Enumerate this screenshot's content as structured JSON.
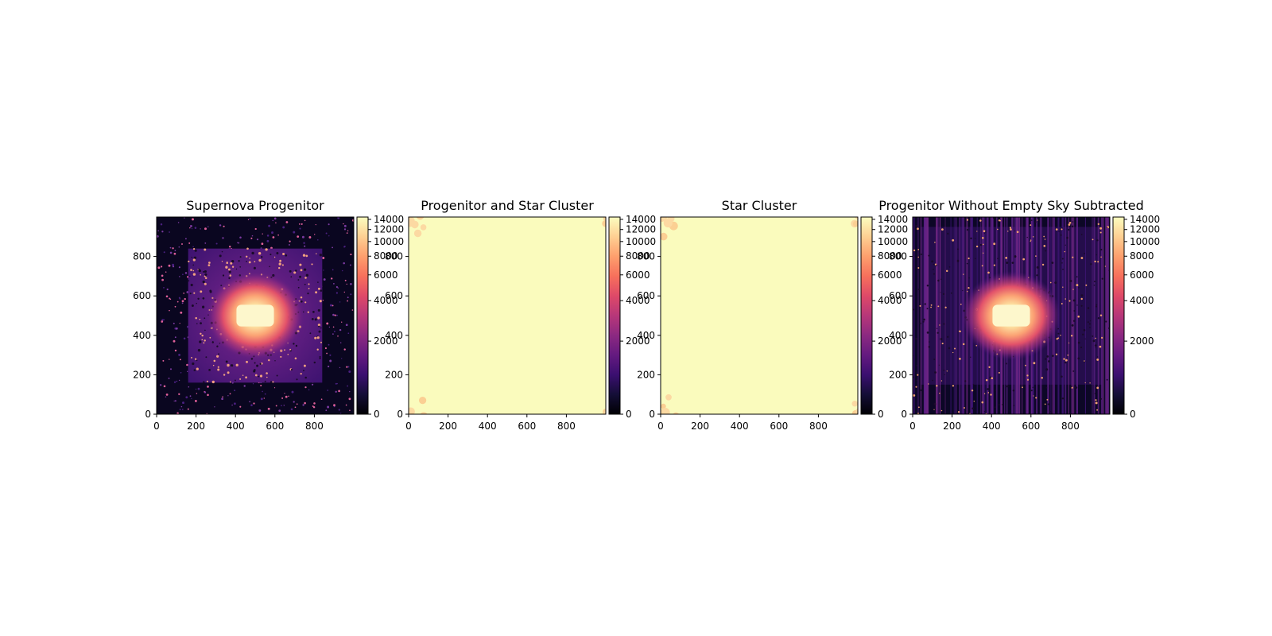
{
  "figure": {
    "background": "#ffffff"
  },
  "chart_data": [
    {
      "type": "heatmap",
      "title": "Supernova Progenitor",
      "xlabel": "",
      "ylabel": "",
      "xlim": [
        0,
        1000
      ],
      "ylim": [
        0,
        1000
      ],
      "xticks": [
        "0",
        "200",
        "400",
        "600",
        "800"
      ],
      "yticks": [
        "0",
        "200",
        "400",
        "600",
        "800"
      ],
      "colormap": "magma",
      "colorbar": {
        "ticks": [
          "0",
          "2000",
          "4000",
          "6000",
          "8000",
          "10000",
          "12000",
          "14000"
        ],
        "range": [
          0,
          14500
        ],
        "scale": "asinh"
      },
      "image": {
        "pattern": "progenitor",
        "inner_square": [
          160,
          840
        ],
        "core_center": [
          500,
          500
        ],
        "core_halfwidth": [
          95,
          55
        ]
      },
      "grid": false
    },
    {
      "type": "heatmap",
      "title": "Progenitor and Star Cluster",
      "xlabel": "",
      "ylabel": "",
      "xlim": [
        0,
        1000
      ],
      "ylim": [
        0,
        1000
      ],
      "xticks": [
        "0",
        "200",
        "400",
        "600",
        "800"
      ],
      "yticks": [
        "0",
        "200",
        "400",
        "600",
        "800"
      ],
      "colormap": "magma",
      "colorbar": {
        "ticks": [
          "0",
          "2000",
          "4000",
          "6000",
          "8000",
          "10000",
          "12000",
          "14000"
        ],
        "range": [
          0,
          14500
        ],
        "scale": "asinh"
      },
      "image": {
        "pattern": "saturated"
      },
      "grid": false
    },
    {
      "type": "heatmap",
      "title": "Star Cluster",
      "xlabel": "",
      "ylabel": "",
      "xlim": [
        0,
        1000
      ],
      "ylim": [
        0,
        1000
      ],
      "xticks": [
        "0",
        "200",
        "400",
        "600",
        "800"
      ],
      "yticks": [
        "0",
        "200",
        "400",
        "600",
        "800"
      ],
      "colormap": "magma",
      "colorbar": {
        "ticks": [
          "0",
          "2000",
          "4000",
          "6000",
          "8000",
          "10000",
          "12000",
          "14000"
        ],
        "range": [
          0,
          14500
        ],
        "scale": "asinh"
      },
      "image": {
        "pattern": "saturated"
      },
      "grid": false
    },
    {
      "type": "heatmap",
      "title": "Progenitor Without Empty Sky Subtracted",
      "xlabel": "",
      "ylabel": "",
      "xlim": [
        0,
        1000
      ],
      "ylim": [
        0,
        1000
      ],
      "xticks": [
        "0",
        "200",
        "400",
        "600",
        "800"
      ],
      "yticks": [
        "0",
        "200",
        "400",
        "600",
        "800"
      ],
      "colormap": "magma",
      "colorbar": {
        "ticks": [
          "0",
          "2000",
          "4000",
          "6000",
          "8000",
          "10000",
          "12000",
          "14000"
        ],
        "range": [
          0,
          14500
        ],
        "scale": "asinh"
      },
      "image": {
        "pattern": "striped",
        "core_center": [
          500,
          500
        ],
        "core_halfwidth": [
          95,
          55
        ]
      },
      "grid": false
    }
  ]
}
